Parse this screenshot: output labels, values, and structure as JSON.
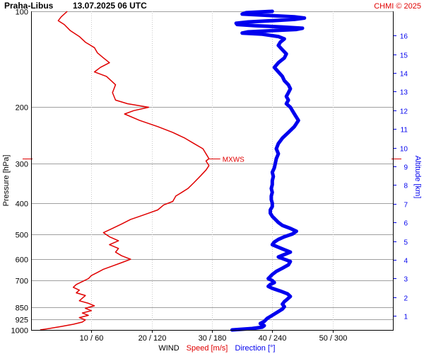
{
  "header": {
    "station": "Praha-Libus",
    "datetime": "13.07.2025 06 UTC",
    "copyright": "CHMI © 2025"
  },
  "chart_data": {
    "type": "line",
    "ylabel": "Pressure [hPa]",
    "y2label": "Altitude [km]",
    "xlabel_parts": {
      "wind": "WIND",
      "speed": "Speed [m/s]",
      "direction": "Direction [°]"
    },
    "pressure_ticks": [
      100,
      200,
      300,
      400,
      500,
      600,
      700,
      850,
      925,
      1000
    ],
    "pressure_range": [
      100,
      1000
    ],
    "x_ticks": [
      "10 / 60",
      "20 / 120",
      "30 / 180",
      "40 / 240",
      "50 / 300"
    ],
    "speed_range": [
      0,
      60
    ],
    "direction_range": [
      0,
      360
    ],
    "altitude_ticks": [
      1,
      2,
      3,
      4,
      5,
      6,
      7,
      8,
      9,
      10,
      11,
      12,
      13,
      14,
      15,
      16
    ],
    "marker": {
      "label": "MXWS",
      "pressure": 290,
      "speed": 29.5
    },
    "colors": {
      "speed": "#e00000",
      "direction": "#0000ee",
      "grid": "#a0a0a0",
      "text": "#000000"
    },
    "series": [
      {
        "name": "Speed [m/s]",
        "points": [
          [
            1000,
            1.5
          ],
          [
            990,
            3
          ],
          [
            975,
            5
          ],
          [
            960,
            7
          ],
          [
            945,
            8.5
          ],
          [
            930,
            9
          ],
          [
            915,
            8
          ],
          [
            900,
            9.5
          ],
          [
            885,
            8.5
          ],
          [
            870,
            10
          ],
          [
            855,
            9
          ],
          [
            840,
            10.5
          ],
          [
            825,
            9.5
          ],
          [
            810,
            8
          ],
          [
            795,
            8.5
          ],
          [
            780,
            9
          ],
          [
            765,
            7.5
          ],
          [
            750,
            8
          ],
          [
            735,
            7
          ],
          [
            720,
            7.5
          ],
          [
            705,
            8.5
          ],
          [
            690,
            9.5
          ],
          [
            675,
            10
          ],
          [
            660,
            11
          ],
          [
            645,
            12
          ],
          [
            630,
            13.5
          ],
          [
            615,
            15
          ],
          [
            600,
            16.5
          ],
          [
            585,
            15
          ],
          [
            570,
            14
          ],
          [
            555,
            14.5
          ],
          [
            540,
            13
          ],
          [
            525,
            14.5
          ],
          [
            510,
            13
          ],
          [
            495,
            12
          ],
          [
            480,
            13.5
          ],
          [
            465,
            15
          ],
          [
            450,
            16.5
          ],
          [
            440,
            18
          ],
          [
            430,
            19.5
          ],
          [
            420,
            21
          ],
          [
            405,
            22
          ],
          [
            395,
            23.5
          ],
          [
            380,
            24
          ],
          [
            370,
            25
          ],
          [
            360,
            26
          ],
          [
            345,
            27
          ],
          [
            330,
            28
          ],
          [
            315,
            29
          ],
          [
            305,
            29.5
          ],
          [
            295,
            29
          ],
          [
            290,
            29.5
          ],
          [
            280,
            29
          ],
          [
            270,
            28.5
          ],
          [
            260,
            27
          ],
          [
            250,
            25.5
          ],
          [
            240,
            23.5
          ],
          [
            230,
            21
          ],
          [
            220,
            18
          ],
          [
            210,
            15.5
          ],
          [
            205,
            17
          ],
          [
            200,
            19.5
          ],
          [
            195,
            16
          ],
          [
            190,
            14
          ],
          [
            180,
            13.5
          ],
          [
            170,
            14
          ],
          [
            160,
            12.5
          ],
          [
            155,
            10.5
          ],
          [
            150,
            11.5
          ],
          [
            145,
            13
          ],
          [
            140,
            12
          ],
          [
            135,
            11
          ],
          [
            130,
            10.5
          ],
          [
            125,
            9
          ],
          [
            120,
            8
          ],
          [
            115,
            6.5
          ],
          [
            110,
            5.5
          ],
          [
            107,
            4.5
          ],
          [
            104,
            5
          ],
          [
            100,
            6
          ]
        ]
      },
      {
        "name": "Direction [°]",
        "points": [
          [
            1000,
            200
          ],
          [
            990,
            220
          ],
          [
            980,
            230
          ],
          [
            970,
            232
          ],
          [
            955,
            228
          ],
          [
            940,
            232
          ],
          [
            920,
            235
          ],
          [
            900,
            240
          ],
          [
            880,
            245
          ],
          [
            860,
            250
          ],
          [
            845,
            252
          ],
          [
            830,
            250
          ],
          [
            815,
            252
          ],
          [
            800,
            255
          ],
          [
            785,
            258
          ],
          [
            770,
            255
          ],
          [
            755,
            248
          ],
          [
            740,
            240
          ],
          [
            730,
            236
          ],
          [
            720,
            238
          ],
          [
            710,
            242
          ],
          [
            700,
            240
          ],
          [
            690,
            236
          ],
          [
            680,
            238
          ],
          [
            670,
            240
          ],
          [
            655,
            244
          ],
          [
            640,
            250
          ],
          [
            625,
            256
          ],
          [
            610,
            258
          ],
          [
            600,
            252
          ],
          [
            590,
            246
          ],
          [
            580,
            252
          ],
          [
            570,
            258
          ],
          [
            560,
            252
          ],
          [
            550,
            246
          ],
          [
            540,
            240
          ],
          [
            530,
            242
          ],
          [
            520,
            246
          ],
          [
            510,
            252
          ],
          [
            500,
            260
          ],
          [
            490,
            264
          ],
          [
            480,
            258
          ],
          [
            470,
            250
          ],
          [
            460,
            246
          ],
          [
            450,
            243
          ],
          [
            440,
            240
          ],
          [
            430,
            238
          ],
          [
            420,
            238
          ],
          [
            410,
            240
          ],
          [
            400,
            240
          ],
          [
            390,
            239
          ],
          [
            380,
            239
          ],
          [
            370,
            240
          ],
          [
            360,
            239
          ],
          [
            350,
            240
          ],
          [
            340,
            240
          ],
          [
            330,
            241
          ],
          [
            320,
            240
          ],
          [
            310,
            242
          ],
          [
            300,
            243
          ],
          [
            290,
            244
          ],
          [
            280,
            246
          ],
          [
            270,
            244
          ],
          [
            260,
            246
          ],
          [
            250,
            250
          ],
          [
            240,
            256
          ],
          [
            230,
            262
          ],
          [
            220,
            266
          ],
          [
            210,
            262
          ],
          [
            200,
            258
          ],
          [
            195,
            254
          ],
          [
            190,
            256
          ],
          [
            185,
            254
          ],
          [
            180,
            256
          ],
          [
            175,
            258
          ],
          [
            170,
            256
          ],
          [
            165,
            252
          ],
          [
            160,
            250
          ],
          [
            155,
            246
          ],
          [
            150,
            242
          ],
          [
            145,
            246
          ],
          [
            140,
            252
          ],
          [
            136,
            254
          ],
          [
            132,
            250
          ],
          [
            128,
            246
          ],
          [
            125,
            248
          ],
          [
            122,
            252
          ],
          [
            120,
            246
          ],
          [
            118,
            230
          ],
          [
            117,
            210
          ],
          [
            116,
            216
          ],
          [
            115,
            240
          ],
          [
            114,
            264
          ],
          [
            113,
            270
          ],
          [
            112,
            250
          ],
          [
            111,
            224
          ],
          [
            110,
            205
          ],
          [
            109,
            204
          ],
          [
            108,
            216
          ],
          [
            107,
            240
          ],
          [
            106,
            262
          ],
          [
            105,
            272
          ],
          [
            104,
            262
          ],
          [
            103,
            236
          ],
          [
            102,
            210
          ],
          [
            101,
            214
          ],
          [
            100,
            240
          ]
        ]
      }
    ]
  }
}
